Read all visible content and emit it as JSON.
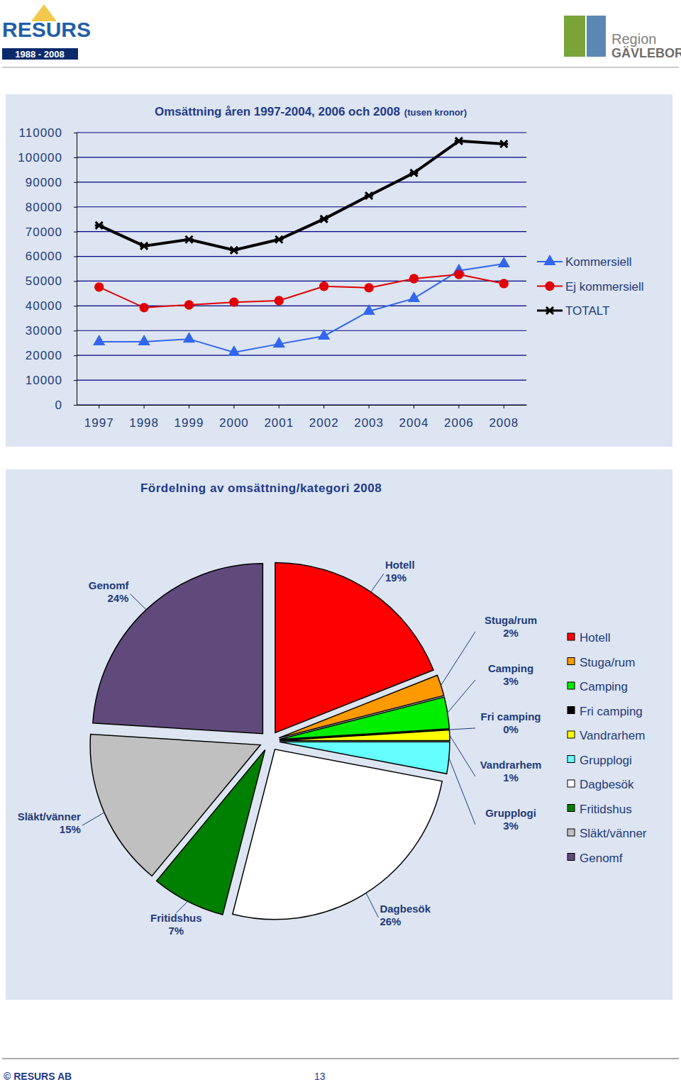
{
  "header": {
    "left_logo": {
      "name": "RESURS",
      "years": "1988 - 2008"
    },
    "right_logo": {
      "line1": "Region",
      "line2": "GÄVLEBORG"
    }
  },
  "chart_data": [
    {
      "type": "line",
      "title": "Omsättning åren 1997-2004, 2006 och 2008",
      "subtitle": "(tusen kronor)",
      "categories": [
        "1997",
        "1998",
        "1999",
        "2000",
        "2001",
        "2002",
        "2003",
        "2004",
        "2006",
        "2008"
      ],
      "series": [
        {
          "name": "Kommersiell",
          "color": "#3366ee",
          "marker": "triangle",
          "values": [
            25500,
            25500,
            26600,
            21200,
            24600,
            27800,
            37800,
            43000,
            54200,
            57000
          ]
        },
        {
          "name": "Ej kommersiell",
          "color": "#e00000",
          "marker": "circle",
          "values": [
            47600,
            39300,
            40400,
            41500,
            42100,
            47900,
            47300,
            51000,
            52700,
            49000
          ]
        },
        {
          "name": "TOTALT",
          "color": "#000000",
          "marker": "x",
          "values": [
            72500,
            64200,
            66800,
            62500,
            66800,
            75100,
            84500,
            93700,
            106600,
            105400
          ]
        }
      ],
      "ylim": [
        0,
        110000
      ],
      "yticks": [
        0,
        10000,
        20000,
        30000,
        40000,
        50000,
        60000,
        70000,
        80000,
        90000,
        100000,
        110000
      ],
      "grid": true,
      "legend": "right"
    },
    {
      "type": "pie",
      "title": "Fördelning av omsättning/kategori 2008",
      "categories": [
        "Hotell",
        "Stuga/rum",
        "Camping",
        "Fri camping",
        "Vandrarhem",
        "Grupplogi",
        "Dagbesök",
        "Fritidshus",
        "Släkt/vänner",
        "Genomf"
      ],
      "values": [
        19,
        2,
        3,
        0,
        1,
        3,
        26,
        7,
        15,
        24
      ],
      "value_labels": [
        "19%",
        "2%",
        "3%",
        "0%",
        "1%",
        "3%",
        "26%",
        "7%",
        "15%",
        "24%"
      ],
      "colors": [
        "#ff0000",
        "#ff9900",
        "#00ee00",
        "#000000",
        "#ffff00",
        "#66ffff",
        "#ffffff",
        "#008000",
        "#c0c0c0",
        "#604a7b"
      ],
      "data_labels": true,
      "legend": "right"
    }
  ],
  "footer": {
    "copyright": "© RESURS AB",
    "page": "13"
  }
}
